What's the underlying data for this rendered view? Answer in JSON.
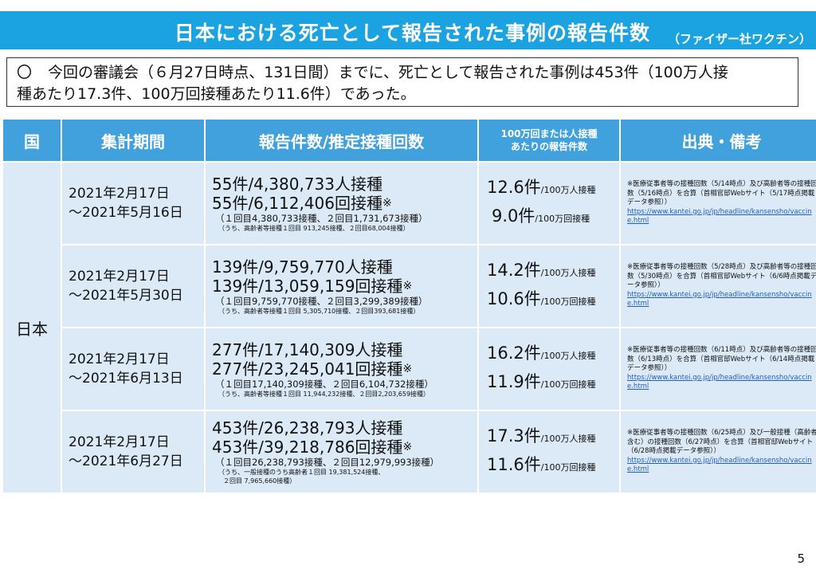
{
  "title": {
    "main": "日本における死亡として報告された事例の報告件数",
    "sub": "（ファイザー社ワクチン）"
  },
  "summary": {
    "mark": "〇",
    "line1": "今回の審議会（６月27日時点、131日間）までに、死亡として報告された事例は453件（100万人接",
    "line2": "種あたり17.3件、100万回接種あたり11.6件）であった。"
  },
  "table": {
    "headers": {
      "country": "国",
      "period": "集計期間",
      "counts": "報告件数/推定接種回数",
      "rate_line1": "100万回または人接種",
      "rate_line2": "あたりの報告件数",
      "source": "出典・備考"
    },
    "country": "日本",
    "rows": [
      {
        "period_start": "2021年2月17日",
        "period_end": "～2021年5月16日",
        "count_persons": "55件/4,380,733人接種",
        "count_doses": "55件/6,112,406回接種",
        "count_note": "※",
        "breakdown": "（１回目4,380,733接種、２回目1,731,673接種）",
        "elderly": "（うち、高齢者等接種１回目 913,245接種、２回目68,004接種）",
        "elderly2": "",
        "rate1_value": "12.6件",
        "rate1_unit": "/100万人接種",
        "rate2_value": "9.0件",
        "rate2_unit": "/100万回接種",
        "source_text": "※医療従事者等の接種回数（5/14時点）及び高齢者等の接種回数（5/16時点）を合算（首相官邸Webサイト（5/17時点掲載データ参照））",
        "source_url": "https://www.kantei.go.jp/jp/headline/kansensho/vaccine.html"
      },
      {
        "period_start": "2021年2月17日",
        "period_end": "～2021年5月30日",
        "count_persons": "139件/9,759,770人接種",
        "count_doses": "139件/13,059,159回接種",
        "count_note": "※",
        "breakdown": "（１回目9,759,770接種、２回目3,299,389接種）",
        "elderly": "（うち、高齢者等接種１回目 5,305,710接種、２回目393,681接種）",
        "elderly2": "",
        "rate1_value": "14.2件",
        "rate1_unit": "/100万人接種",
        "rate2_value": "10.6件",
        "rate2_unit": "/100万回接種",
        "source_text": "※医療従事者等の接種回数（5/28時点）及び高齢者等の接種回数（5/30時点）を合算（首相官邸Webサイト（6/6時点掲載データ参照））",
        "source_url": "https://www.kantei.go.jp/jp/headline/kansensho/vaccine.html"
      },
      {
        "period_start": "2021年2月17日",
        "period_end": "～2021年6月13日",
        "count_persons": "277件/17,140,309人接種",
        "count_doses": "277件/23,245,041回接種",
        "count_note": "※",
        "breakdown": "（１回目17,140,309接種、２回目6,104,732接種）",
        "elderly": "（うち、高齢者等接種１回目 11,944,232接種、２回目2,203,659接種）",
        "elderly2": "",
        "rate1_value": "16.2件",
        "rate1_unit": "/100万人接種",
        "rate2_value": "11.9件",
        "rate2_unit": "/100万回接種",
        "source_text": "※医療従事者等の接種回数（6/11時点）及び高齢者等の接種回数（6/13時点）を合算（首相官邸Webサイト（6/14時点掲載データ参照））",
        "source_url": "https://www.kantei.go.jp/jp/headline/kansensho/vaccine.html"
      },
      {
        "period_start": "2021年2月17日",
        "period_end": "～2021年6月27日",
        "count_persons": "453件/26,238,793人接種",
        "count_doses": "453件/39,218,786回接種",
        "count_note": "※",
        "breakdown": "（１回目26,238,793接種、２回目12,979,993接種）",
        "elderly": "（うち、一般接種のうち高齢者１回目 19,381,524接種、",
        "elderly2": "２回目 7,965,660接種）",
        "rate1_value": "17.3件",
        "rate1_unit": "/100万人接種",
        "rate2_value": "11.6件",
        "rate2_unit": "/100万回接種",
        "source_text": "※医療従事者等の接種回数（6/25時点）及び一般接種（高齢者含む）の接種回数（6/27時点）を合算（首相官邸Webサイト（6/28時点掲載データ参照））",
        "source_url": "https://www.kantei.go.jp/jp/headline/kansensho/vaccine.html"
      }
    ]
  },
  "page_number": "5"
}
